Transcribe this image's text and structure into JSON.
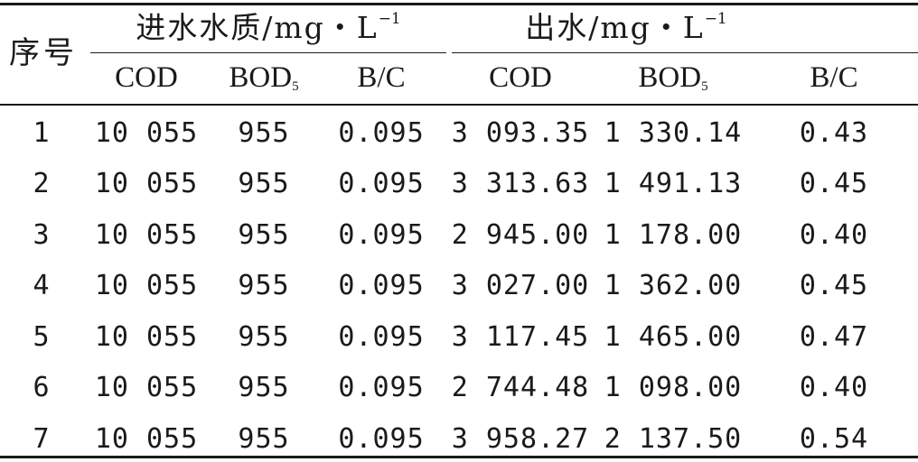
{
  "header": {
    "seq_label": "序号",
    "influent_group": "进水水质/mg・L",
    "influent_sup": "−1",
    "effluent_group": "出水/mg・L",
    "effluent_sup": "−1",
    "columns": {
      "in_cod": "COD",
      "in_bod": "BOD",
      "in_bod_sub": "5",
      "in_bc": "B/C",
      "out_cod": "COD",
      "out_bod": "BOD",
      "out_bod_sub": "5",
      "out_bc": "B/C"
    }
  },
  "rows": [
    {
      "no": "1",
      "in_cod": "10 055",
      "in_bod": "955",
      "in_bc": "0.095",
      "out_cod": "3 093.35",
      "out_bod": "1 330.14",
      "out_bc": "0.43"
    },
    {
      "no": "2",
      "in_cod": "10 055",
      "in_bod": "955",
      "in_bc": "0.095",
      "out_cod": "3 313.63",
      "out_bod": "1 491.13",
      "out_bc": "0.45"
    },
    {
      "no": "3",
      "in_cod": "10 055",
      "in_bod": "955",
      "in_bc": "0.095",
      "out_cod": "2 945.00",
      "out_bod": "1 178.00",
      "out_bc": "0.40"
    },
    {
      "no": "4",
      "in_cod": "10 055",
      "in_bod": "955",
      "in_bc": "0.095",
      "out_cod": "3 027.00",
      "out_bod": "1 362.00",
      "out_bc": "0.45"
    },
    {
      "no": "5",
      "in_cod": "10 055",
      "in_bod": "955",
      "in_bc": "0.095",
      "out_cod": "3 117.45",
      "out_bod": "1 465.00",
      "out_bc": "0.47"
    },
    {
      "no": "6",
      "in_cod": "10 055",
      "in_bod": "955",
      "in_bc": "0.095",
      "out_cod": "2 744.48",
      "out_bod": "1 098.00",
      "out_bc": "0.40"
    },
    {
      "no": "7",
      "in_cod": "10 055",
      "in_bod": "955",
      "in_bc": "0.095",
      "out_cod": "3 958.27",
      "out_bod": "2 137.50",
      "out_bc": "0.54"
    }
  ]
}
